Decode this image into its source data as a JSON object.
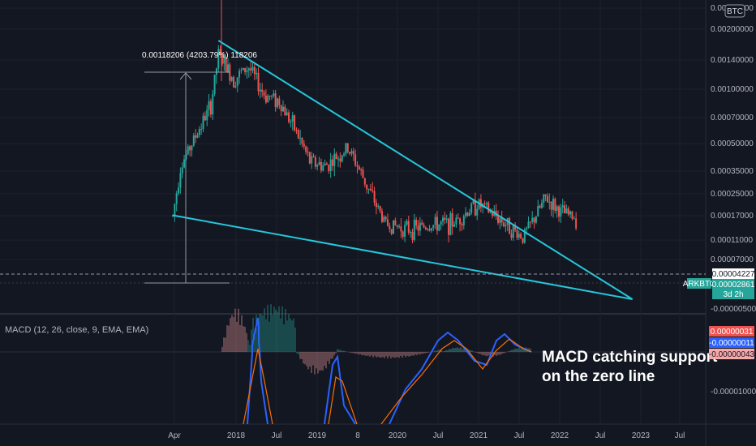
{
  "chart_data": [
    {
      "type": "candlestick",
      "symbol": "ARKBTC",
      "currency_badge": "BTC",
      "y_scale": "log",
      "ylim": [
        5e-07,
        0.0024
      ],
      "price_ticks": [
        "0.00240000",
        "0.00200000",
        "0.00140000",
        "0.00100000",
        "0.00070000",
        "0.00050000",
        "0.00035000",
        "0.00025000",
        "0.00017000",
        "0.00011000",
        "0.00007000",
        "0.00004227",
        "0.00002861",
        "-0.00000500"
      ],
      "time_ticks": [
        "Apr",
        "2018",
        "Jul",
        "2019",
        "8",
        "2020",
        "Jul",
        "2021",
        "Jul",
        "2022",
        "Jul",
        "2023",
        "Jul"
      ],
      "close_series": [
        {
          "date": "2017-03",
          "value": 3e-05
        },
        {
          "date": "2017-04",
          "value": 9e-05
        },
        {
          "date": "2017-06",
          "value": 0.00017
        },
        {
          "date": "2017-08",
          "value": 0.00032
        },
        {
          "date": "2017-09",
          "value": 0.0009
        },
        {
          "date": "2017-11",
          "value": 0.00055
        },
        {
          "date": "2018-01",
          "value": 0.0007
        },
        {
          "date": "2018-03",
          "value": 0.0004
        },
        {
          "date": "2018-05",
          "value": 0.00035
        },
        {
          "date": "2018-07",
          "value": 0.0002
        },
        {
          "date": "2018-09",
          "value": 0.0001
        },
        {
          "date": "2018-11",
          "value": 9e-05
        },
        {
          "date": "2019-02",
          "value": 0.00013
        },
        {
          "date": "2019-03",
          "value": 0.0001
        },
        {
          "date": "2019-05",
          "value": 5e-05
        },
        {
          "date": "2019-07",
          "value": 2.5e-05
        },
        {
          "date": "2019-10",
          "value": 2.2e-05
        },
        {
          "date": "2020-01",
          "value": 2.4e-05
        },
        {
          "date": "2020-04",
          "value": 2.6e-05
        },
        {
          "date": "2020-07",
          "value": 4e-05
        },
        {
          "date": "2020-10",
          "value": 2.8e-05
        },
        {
          "date": "2021-01",
          "value": 1.8e-05
        },
        {
          "date": "2021-04",
          "value": 4.5e-05
        },
        {
          "date": "2021-06",
          "value": 3.3e-05
        },
        {
          "date": "2021-08",
          "value": 2.86e-05
        }
      ],
      "current_price": "0.00002861",
      "current_countdown": "3d 2h",
      "horizontal_level": "0.00004227",
      "measure_label": "0.00118206 (4203.79%) 118206",
      "trendlines": [
        {
          "name": "upper",
          "from": {
            "date": "2017-09",
            "value": 0.0012
          },
          "to": {
            "date": "2021-12",
            "value": 4.5e-06
          }
        },
        {
          "name": "lower",
          "from": {
            "date": "2017-03",
            "value": 3.05e-05
          },
          "to": {
            "date": "2021-12",
            "value": 4.5e-06
          }
        }
      ],
      "colors": {
        "up": "#26a69a",
        "down": "#ef5350",
        "trendline": "#26c6da",
        "wick_spike": "#ef5350"
      }
    },
    {
      "type": "line",
      "title": "MACD (12, 26, close, 9, EMA, EMA)",
      "series": [
        {
          "name": "MACD",
          "color": "#2962ff"
        },
        {
          "name": "Signal",
          "color": "#ff6d00"
        },
        {
          "name": "Histogram",
          "color": "#ef5350"
        }
      ],
      "value_badges": [
        {
          "label": "0.00000031",
          "color": "#ef5350"
        },
        {
          "label": "-0.00000011",
          "color": "#2962ff"
        },
        {
          "label": "-0.00000043",
          "color": "#f7a8a8"
        }
      ],
      "axis_label": "-0.00001000",
      "annotation": [
        "MACD catching support",
        "on the zero line"
      ]
    }
  ]
}
